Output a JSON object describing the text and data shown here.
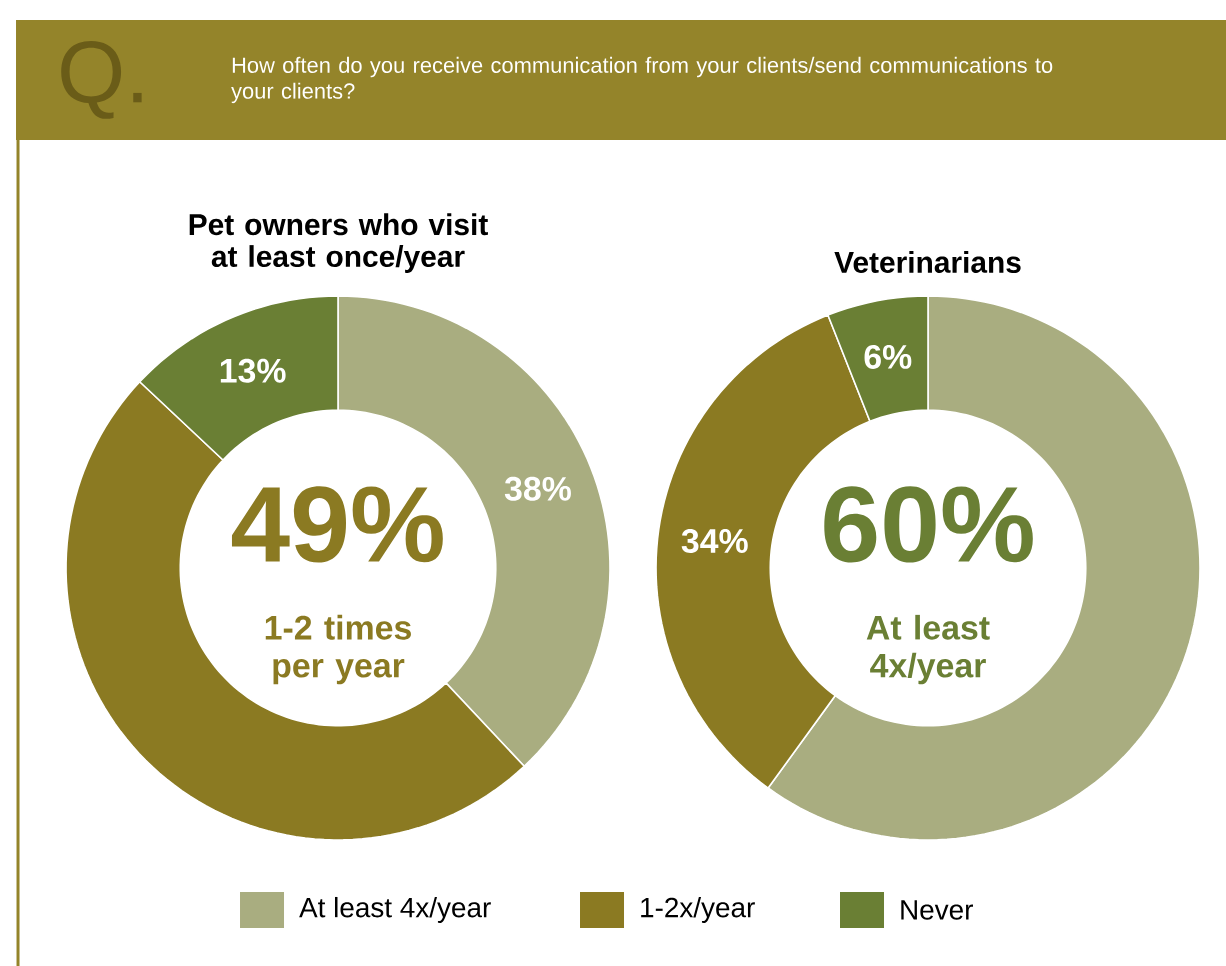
{
  "chart_data": [
    {
      "type": "donut",
      "title": "Pet owners who visit at least once/year",
      "categories": [
        "At least 4x/year",
        "1-2x/year",
        "Never"
      ],
      "values": [
        38,
        49,
        13
      ],
      "value_labels": [
        "38%",
        null,
        "13%"
      ],
      "colors": [
        "#a9ad80",
        "#8b7a22",
        "#6a7f34"
      ],
      "legend": "bottom",
      "annotations": [
        "Q.",
        "How often do you receive communication from your clients/send communications to your clients?",
        {
          "text": "49%"
        },
        {
          "text": "1-2 times per year"
        }
      ]
    },
    {
      "type": "donut",
      "title": "Veterinarians",
      "categories": [
        null,
        null,
        null
      ],
      "values": [
        60,
        34,
        6
      ],
      "value_labels": [
        null,
        "34%",
        "6%"
      ],
      "colors": [
        "#a9ad80",
        "#8b7a22",
        "#6a7f34"
      ],
      "annotations": [
        {
          "text": "60%"
        },
        {
          "text": "At least 4x/year"
        }
      ]
    }
  ]
}
